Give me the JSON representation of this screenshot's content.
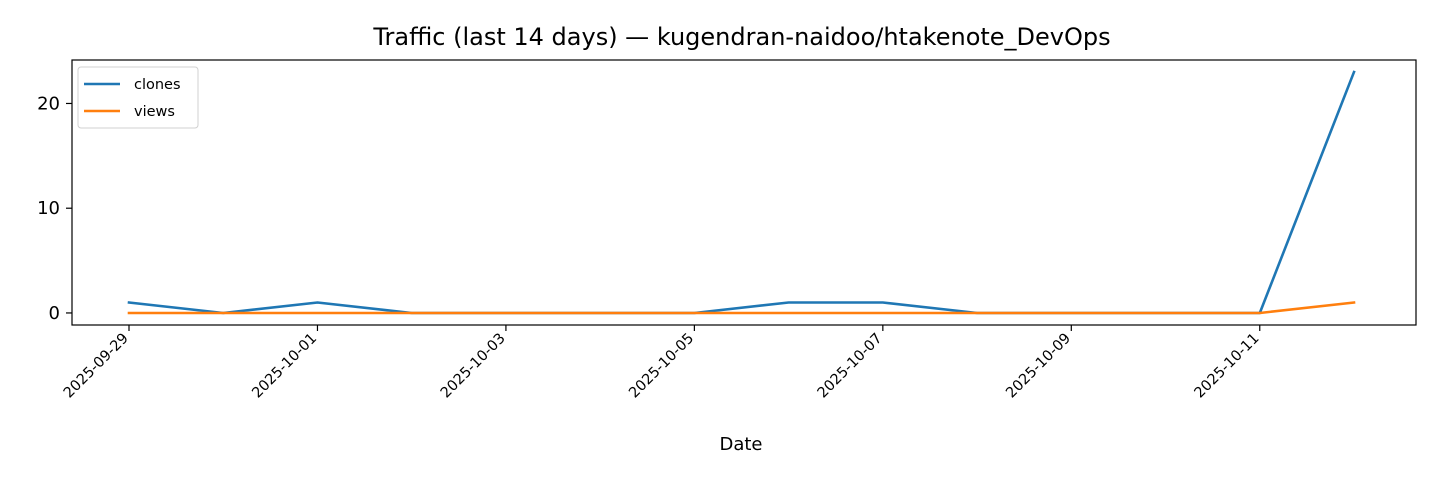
{
  "chart_data": {
    "type": "line",
    "title": "Traffic (last 14 days) — kugendran-naidoo/htakenote_DevOps",
    "xlabel": "Date",
    "ylabel": "",
    "x": [
      "2025-09-29",
      "2025-09-30",
      "2025-10-01",
      "2025-10-02",
      "2025-10-03",
      "2025-10-04",
      "2025-10-05",
      "2025-10-06",
      "2025-10-07",
      "2025-10-08",
      "2025-10-09",
      "2025-10-10",
      "2025-10-11",
      "2025-10-12"
    ],
    "x_tick_labels": [
      "2025-09-29",
      "2025-10-01",
      "2025-10-03",
      "2025-10-05",
      "2025-10-07",
      "2025-10-09",
      "2025-10-11"
    ],
    "y_ticks": [
      0,
      10,
      20
    ],
    "ylim": [
      -1.15,
      24.15
    ],
    "series": [
      {
        "name": "clones",
        "color": "#1f77b4",
        "values": [
          1,
          0,
          1,
          0,
          0,
          0,
          0,
          1,
          1,
          0,
          0,
          0,
          0,
          23
        ]
      },
      {
        "name": "views",
        "color": "#ff7f0e",
        "values": [
          0,
          0,
          0,
          0,
          0,
          0,
          0,
          0,
          0,
          0,
          0,
          0,
          0,
          1
        ]
      }
    ],
    "legend_position": "top-left",
    "grid": false
  }
}
